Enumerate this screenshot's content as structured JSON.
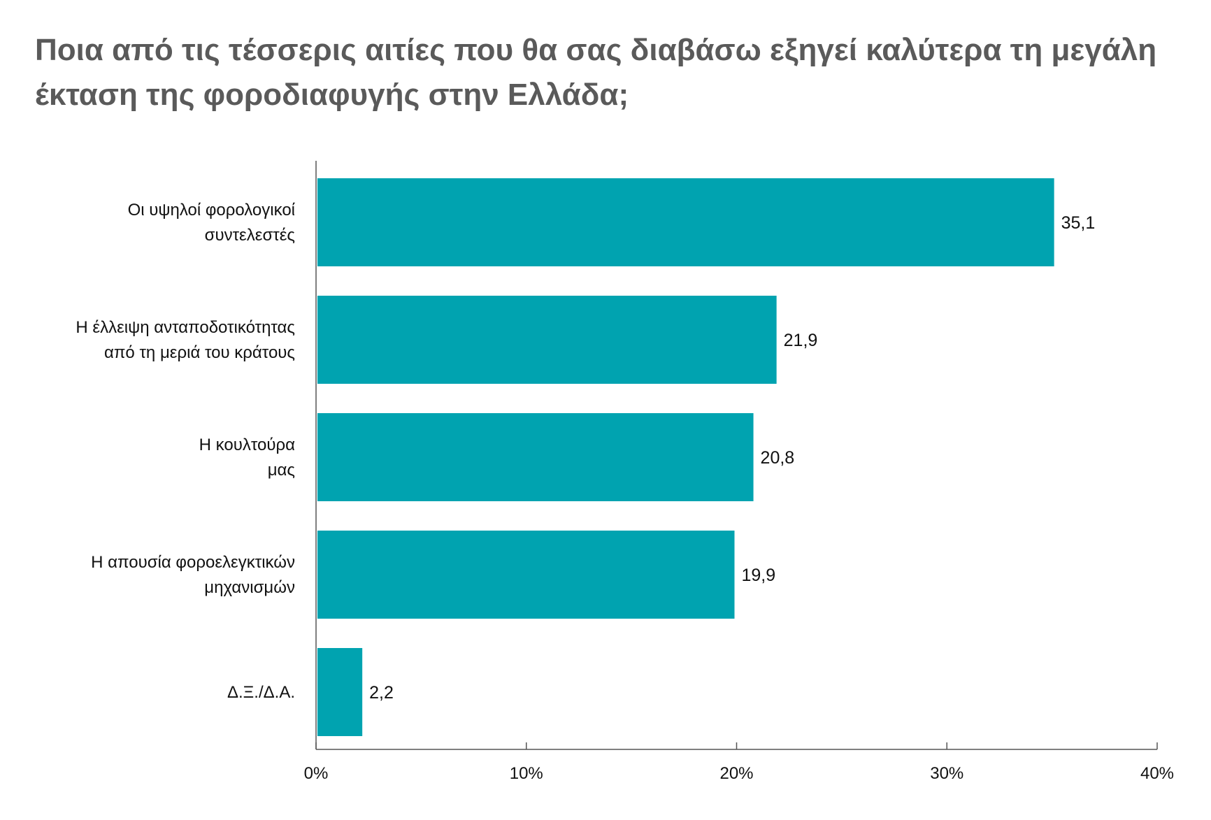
{
  "chart_data": {
    "type": "bar",
    "orientation": "horizontal",
    "title": "Ποια από τις τέσσερις αιτίες που θα σας διαβάσω εξηγεί καλύτερα τη μεγάλη έκταση της φοροδιαφυγής στην Ελλάδα;",
    "categories": [
      [
        "Οι υψηλοί φορολογικοί",
        "συντελεστές"
      ],
      [
        "Η έλλειψη ανταποδοτικότητας",
        "από τη  μεριά του κράτους"
      ],
      [
        "Η κουλτούρα",
        "μας"
      ],
      [
        "Η απουσία φοροελεγκτικών",
        "μηχανισμών"
      ],
      [
        "Δ.Ξ./Δ.Α."
      ]
    ],
    "values": [
      35.1,
      21.9,
      20.8,
      19.9,
      2.2
    ],
    "value_labels": [
      "35,1",
      "21,9",
      "20,8",
      "19,9",
      "2,2"
    ],
    "xlim": [
      0,
      40
    ],
    "xticks": [
      0,
      10,
      20,
      30,
      40
    ],
    "xtick_labels": [
      "0%",
      "10%",
      "20%",
      "30%",
      "40%"
    ],
    "bar_color": "#00a3b0",
    "grid": false,
    "legend": "none"
  }
}
